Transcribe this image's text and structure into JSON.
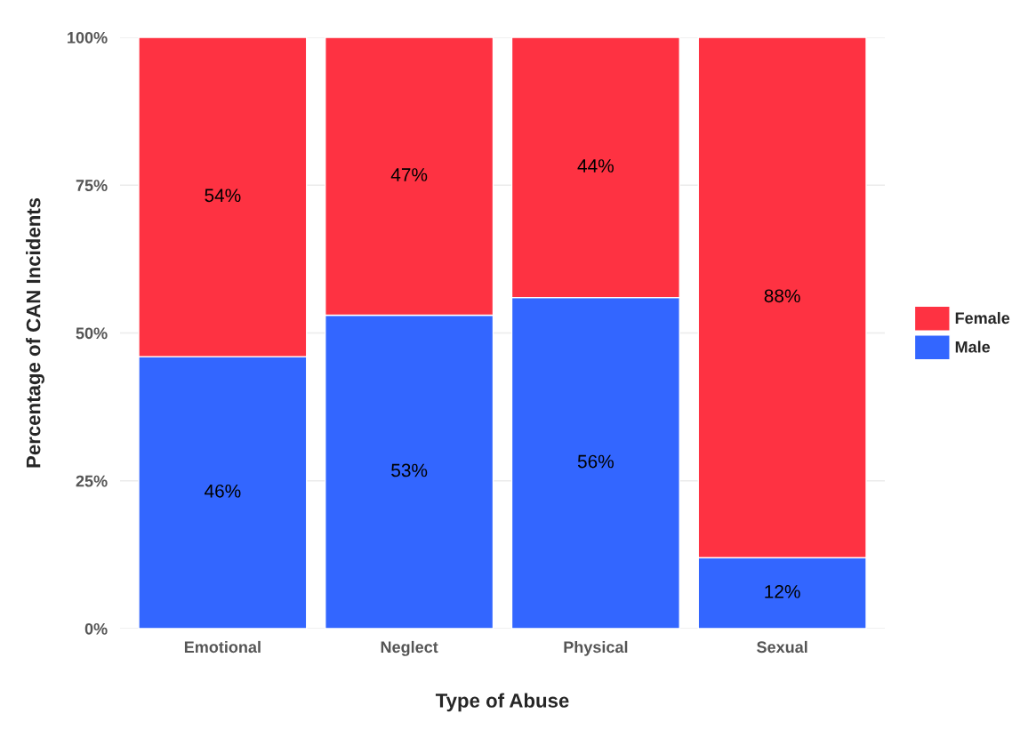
{
  "chart_data": {
    "type": "bar",
    "stacked": true,
    "xlabel": "Type of Abuse",
    "ylabel": "Percentage of CAN Incidents",
    "categories": [
      "Emotional",
      "Neglect",
      "Physical",
      "Sexual"
    ],
    "series": [
      {
        "name": "Male",
        "color": "#3366ff",
        "values": [
          46,
          53,
          56,
          12
        ],
        "value_labels": [
          "46%",
          "53%",
          "56%",
          "12%"
        ]
      },
      {
        "name": "Female",
        "color": "#fe3242",
        "values": [
          54,
          47,
          44,
          88
        ],
        "value_labels": [
          "54%",
          "47%",
          "44%",
          "88%"
        ]
      }
    ],
    "ylim": [
      0,
      100
    ],
    "yticks": [
      {
        "value": 0,
        "label": "0%"
      },
      {
        "value": 25,
        "label": "25%"
      },
      {
        "value": 50,
        "label": "50%"
      },
      {
        "value": 75,
        "label": "75%"
      },
      {
        "value": 100,
        "label": "100%"
      }
    ],
    "grid": true,
    "legend": "right"
  }
}
